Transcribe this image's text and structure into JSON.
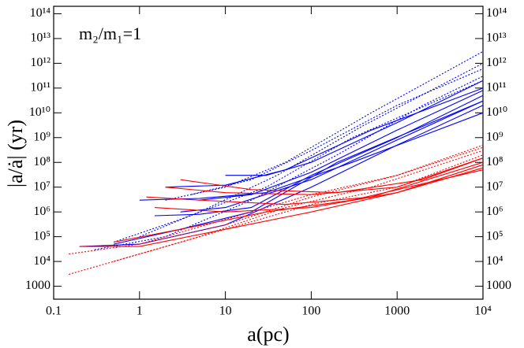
{
  "chart_data": {
    "type": "line",
    "annotation": "m₂/m₁=1",
    "x_label": "a(pc)",
    "y_label": "|a/ȧ| (yr)",
    "log_x": true,
    "log_y": true,
    "xlim": [
      0.1,
      10000
    ],
    "ylim": [
      300,
      200000000000000
    ],
    "xticks": [
      0.1,
      1,
      10,
      100,
      1000,
      {
        "value": 10000,
        "label": "10⁴"
      }
    ],
    "yticks": [
      1000,
      {
        "value": 10000,
        "label": "10⁴"
      },
      {
        "value": 100000,
        "label": "10⁵"
      },
      {
        "value": 1000000,
        "label": "10⁶"
      },
      {
        "value": 10000000,
        "label": "10⁷"
      },
      {
        "value": 100000000,
        "label": "10⁸"
      },
      {
        "value": 1000000000,
        "label": "10⁹"
      },
      {
        "value": 10000000000,
        "label": "10¹⁰"
      },
      {
        "value": 100000000000,
        "label": "10¹¹"
      },
      {
        "value": 1000000000000,
        "label": "10¹²"
      },
      {
        "value": 10000000000000,
        "label": "10¹³"
      },
      {
        "value": 100000000000000,
        "label": "10¹⁴"
      }
    ],
    "series": [
      {
        "color": "#0000ff",
        "dash": "solid",
        "x": [
          0.2,
          1,
          10,
          100,
          1000,
          10000
        ],
        "values": [
          40000,
          50000,
          300000,
          10000000,
          500000000,
          20000000000
        ]
      },
      {
        "color": "#0000ff",
        "dash": "solid",
        "x": [
          1.5,
          5,
          20,
          100,
          1000,
          10000
        ],
        "values": [
          700000,
          800000,
          1500000,
          30000000,
          1000000000,
          50000000000
        ]
      },
      {
        "color": "#0000ff",
        "dash": "solid",
        "x": [
          5,
          20,
          100,
          1000,
          10000
        ],
        "values": [
          3000000,
          5000000,
          40000000,
          2000000000,
          80000000000
        ]
      },
      {
        "color": "#0000ff",
        "dash": "solid",
        "x": [
          1,
          5,
          30,
          300,
          10000
        ],
        "values": [
          3000000,
          3500000,
          6000000,
          100000000,
          10000000000
        ]
      },
      {
        "color": "#0000ff",
        "dash": "solid",
        "x": [
          2,
          10,
          50,
          500,
          10000
        ],
        "values": [
          10000000,
          12000000,
          50000000,
          2000000000,
          100000000000
        ]
      },
      {
        "color": "#0000ff",
        "dash": "solid",
        "x": [
          10,
          30,
          100,
          1000,
          10000
        ],
        "values": [
          30000000,
          30000000,
          100000000,
          4000000000,
          200000000000
        ]
      },
      {
        "color": "#0000ff",
        "dash": "solid",
        "x": [
          3,
          10,
          100,
          1000,
          10000
        ],
        "values": [
          1000000,
          1500000,
          20000000,
          800000000,
          30000000000
        ]
      },
      {
        "color": "#0000ff",
        "dash": "solid",
        "x": [
          0.5,
          3,
          20,
          200,
          10000
        ],
        "values": [
          50000,
          200000,
          1000000,
          100000000,
          30000000000
        ]
      },
      {
        "color": "#0000ff",
        "dash": "dotted",
        "x": [
          0.3,
          2,
          20,
          200,
          2000,
          10000
        ],
        "values": [
          30000,
          100000,
          3000000,
          200000000,
          20000000000,
          300000000000
        ]
      },
      {
        "color": "#0000ff",
        "dash": "dotted",
        "x": [
          1,
          5,
          40,
          400,
          10000
        ],
        "values": [
          100000,
          1000000,
          30000000,
          3000000000,
          1000000000000
        ]
      },
      {
        "color": "#0000ff",
        "dash": "dotted",
        "x": [
          2,
          10,
          50,
          500,
          10000
        ],
        "values": [
          3000000,
          10000000,
          100000000,
          10000000000,
          3000000000000
        ]
      },
      {
        "color": "#0000ff",
        "dash": "dotted",
        "x": [
          0.5,
          3,
          30,
          300,
          10000
        ],
        "values": [
          60000,
          500000,
          10000000,
          1000000000,
          200000000000
        ]
      },
      {
        "color": "#0000ff",
        "dash": "dotted",
        "x": [
          4,
          20,
          100,
          1000,
          10000
        ],
        "values": [
          5000000,
          20000000,
          300000000,
          20000000000,
          600000000000
        ]
      },
      {
        "color": "#ff0000",
        "dash": "solid",
        "x": [
          0.2,
          1,
          10,
          100,
          1000,
          10000
        ],
        "values": [
          40000,
          40000,
          200000,
          1000000,
          6000000,
          60000000
        ]
      },
      {
        "color": "#ff0000",
        "dash": "solid",
        "x": [
          1.2,
          5,
          50,
          500,
          10000
        ],
        "values": [
          4000000,
          3000000,
          2000000,
          4000000,
          100000000
        ]
      },
      {
        "color": "#ff0000",
        "dash": "solid",
        "x": [
          2,
          10,
          100,
          1000,
          10000
        ],
        "values": [
          10000000,
          6000000,
          5000000,
          10000000,
          150000000
        ]
      },
      {
        "color": "#ff0000",
        "dash": "solid",
        "x": [
          1.5,
          10,
          100,
          1000,
          10000
        ],
        "values": [
          1500000,
          1000000,
          1500000,
          6000000,
          80000000
        ]
      },
      {
        "color": "#ff0000",
        "dash": "solid",
        "x": [
          3,
          20,
          200,
          2000,
          10000
        ],
        "values": [
          20000000,
          8000000,
          6000000,
          20000000,
          150000000
        ]
      },
      {
        "color": "#ff0000",
        "dash": "solid",
        "x": [
          0.5,
          3,
          30,
          300,
          10000
        ],
        "values": [
          60000,
          200000,
          1000000,
          3000000,
          50000000
        ]
      },
      {
        "color": "#ff0000",
        "dash": "dotted",
        "x": [
          0.15,
          1,
          10,
          100,
          1000,
          10000
        ],
        "values": [
          3000,
          20000,
          200000,
          2000000,
          10000000,
          200000000
        ]
      },
      {
        "color": "#ff0000",
        "dash": "dotted",
        "x": [
          0.15,
          1,
          10,
          100,
          1000,
          10000
        ],
        "values": [
          20000,
          50000,
          300000,
          4000000,
          30000000,
          400000000
        ]
      },
      {
        "color": "#ff0000",
        "dash": "dotted",
        "x": [
          0.5,
          5,
          50,
          500,
          10000
        ],
        "values": [
          10000,
          100000,
          1500000,
          10000000,
          300000000
        ]
      },
      {
        "color": "#ff0000",
        "dash": "dotted",
        "x": [
          1,
          10,
          100,
          1000,
          10000
        ],
        "values": [
          50000,
          500000,
          5000000,
          30000000,
          500000000
        ]
      }
    ]
  }
}
